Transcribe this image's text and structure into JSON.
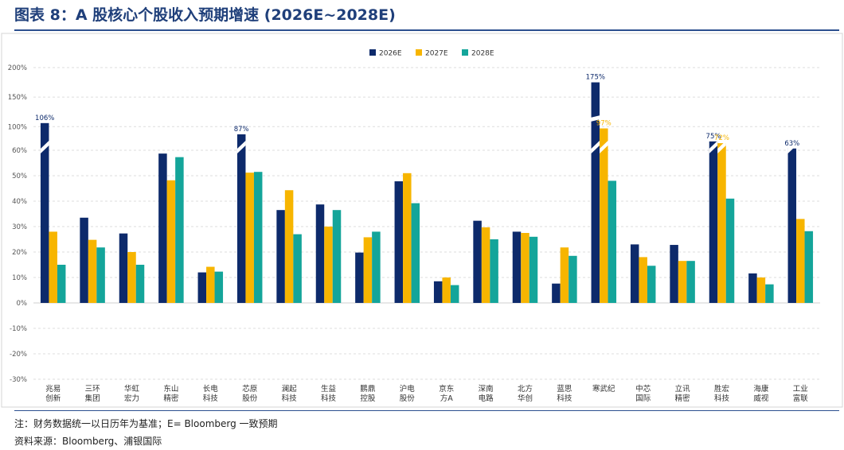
{
  "figure": {
    "title": "图表 8：A 股核心个股收入预期增速 (2026E~2028E)",
    "note": "注：财务数据统一以日历年为基准；E= Bloomberg 一致预期",
    "source": "资料来源：Bloomberg、浦银国际"
  },
  "chart_data": {
    "type": "bar",
    "title": "",
    "xlabel": "",
    "ylabel": "",
    "y_axis_style": "broken",
    "y_ticks": [
      "200%",
      "150%",
      "100%",
      "60%",
      "50%",
      "40%",
      "30%",
      "20%",
      "10%",
      "0%",
      "-10%",
      "-20%",
      "-30%"
    ],
    "y_break": {
      "lower_range": [
        -30,
        60
      ],
      "upper_range": [
        60,
        200
      ]
    },
    "grid": true,
    "legend_position": "top",
    "categories": [
      [
        "兆易",
        "创新"
      ],
      [
        "三环",
        "集团"
      ],
      [
        "华虹",
        "宏力"
      ],
      [
        "东山",
        "精密"
      ],
      [
        "长电",
        "科技"
      ],
      [
        "芯原",
        "股份"
      ],
      [
        "澜起",
        "科技"
      ],
      [
        "生益",
        "科技"
      ],
      [
        "鹏鼎",
        "控股"
      ],
      [
        "沪电",
        "股份"
      ],
      [
        "京东",
        "方A"
      ],
      [
        "深南",
        "电路"
      ],
      [
        "北方",
        "华创"
      ],
      [
        "蓝思",
        "科技"
      ],
      [
        "寒武纪"
      ],
      [
        "中芯",
        "国际"
      ],
      [
        "立讯",
        "精密"
      ],
      [
        "胜宏",
        "科技"
      ],
      [
        "海康",
        "威视"
      ],
      [
        "工业",
        "富联"
      ]
    ],
    "series": [
      {
        "name": "2026E",
        "color": "#0d2a6b",
        "values": [
          106,
          33.5,
          27.3,
          58.7,
          12,
          87,
          36.5,
          38.7,
          19.8,
          47.8,
          8.5,
          32.3,
          28,
          7.6,
          175,
          23,
          22.8,
          75,
          11.6,
          63
        ],
        "labels": {
          "0": "106%",
          "5": "87%",
          "14": "175%",
          "17": "75%",
          "19": "63%"
        }
      },
      {
        "name": "2027E",
        "color": "#f7b500",
        "values": [
          28,
          24.8,
          20,
          48.2,
          14.2,
          51.2,
          44.3,
          30,
          25.8,
          51,
          10,
          29.7,
          27.5,
          21.8,
          97,
          18,
          16.5,
          72,
          10,
          33
        ],
        "labels": {
          "14": "97%",
          "17": "72%"
        }
      },
      {
        "name": "2028E",
        "color": "#14a59a",
        "values": [
          15,
          21.8,
          15,
          57.3,
          12.3,
          51.5,
          27,
          36.5,
          28,
          39.2,
          7,
          25,
          26,
          18.5,
          48,
          14.6,
          16.5,
          41,
          7.3,
          28.2
        ],
        "labels": {}
      }
    ]
  }
}
